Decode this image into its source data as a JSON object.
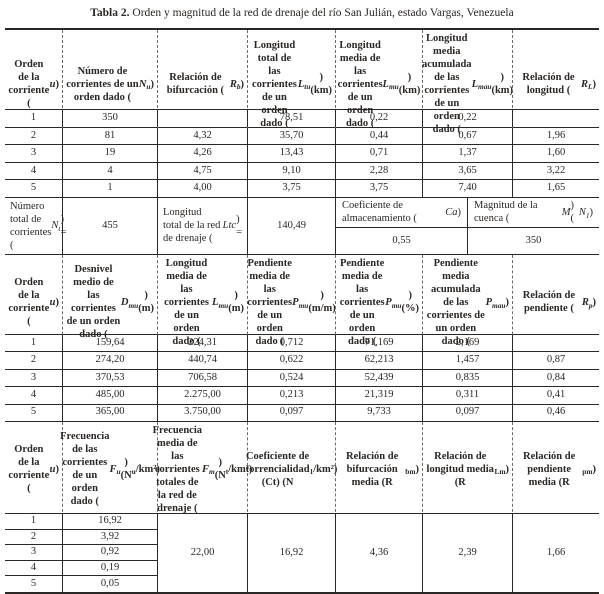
{
  "title": {
    "prefix": "Tabla 2.",
    "rest": " Orden y magnitud de la red de drenaje del río San Julián, estado Vargas, Venezuela"
  },
  "table1": {
    "headers": [
      "Orden de la corriente (<i>u</i>)",
      "Número de corrientes de un orden dado (<i>N<sub>u</sub></i>)",
      "Relación de bifurcación (<i>R<sub>b</sub></i>)",
      "Longitud total de las corrientes de un orden dado (<i>L<sub>tu</sub></i>) (km)",
      "Longitud media de las corrientes de un orden dado (<i>L<sub>mu</sub></i>) (km)",
      "Longitud media acumulada de las corrientes de un orden dado (<i>L<sub>mau</sub></i>) (km)",
      "Relación de longitud (<i>R<sub>L</sub></i>)"
    ],
    "rows": [
      [
        "1",
        "350",
        "",
        "78,51",
        "0,22",
        "0,22",
        ""
      ],
      [
        "2",
        "81",
        "4,32",
        "35,70",
        "0,44",
        "0,67",
        "1,96"
      ],
      [
        "3",
        "19",
        "4,26",
        "13,43",
        "0,71",
        "1,37",
        "1,60"
      ],
      [
        "4",
        "4",
        "4,75",
        "9,10",
        "2,28",
        "3,65",
        "3,22"
      ],
      [
        "5",
        "1",
        "4,00",
        "3,75",
        "3,75",
        "7,40",
        "1,65"
      ]
    ]
  },
  "totals": {
    "nt_label": "Número total de corrientes (<i>N<sub>t</sub></i>) =",
    "nt_value": "455",
    "ltc_label": "Longitud total de la red de drenaje (<i>Ltc</i>) =",
    "ltc_value": "140,49",
    "ca_label": "Coeficiente de almacenamiento (<i>Ca</i>)",
    "ca_value": "0,55",
    "m_label": "Magnitud de la cuenca (<i>M</i>) (<i>N<sub>1</sub></i>)",
    "m_value": "350"
  },
  "table2": {
    "headers": [
      "Orden de la corriente (<i>u</i>)",
      "Desnivel medio de las corrientes de un orden dado (<i>D<sub>mu</sub></i>) (m)",
      "Longitud media de las corrientes de un orden dado (<i>L<sub>mu</sub></i>) (m)",
      "Pendiente media de las corrientes de un orden dado (<i>P<sub>mu</sub></i>) (m/m)",
      "Pendiente media de las corrientes de un orden dado (<i>P<sub>mu</sub></i>) (%)",
      "Pendiente media acumulada de las corrientes de un orden dado (<i>P<sub>mau</sub></i>)",
      "Relación de pendiente (<i>R<sub>p</sub></i>)"
    ],
    "rows": [
      [
        "1",
        "159,64",
        "224,31",
        "0,712",
        "71,169",
        "2,169",
        ""
      ],
      [
        "2",
        "274,20",
        "440,74",
        "0,622",
        "62,213",
        "1,457",
        "0,87"
      ],
      [
        "3",
        "370,53",
        "706,58",
        "0,524",
        "52,439",
        "0,835",
        "0,84"
      ],
      [
        "4",
        "485,00",
        "2.275,00",
        "0,213",
        "21,319",
        "0,311",
        "0,41"
      ],
      [
        "5",
        "365,00",
        "3.750,00",
        "0,097",
        "9,733",
        "0,097",
        "0,46"
      ]
    ]
  },
  "table3": {
    "headers": [
      "Orden de la corriente (<i>u</i>)",
      "Frecuencia de las corrientes de un orden dado (<i>F<sub>u</sub></i>) (N<sub>u</sub>/km²)",
      "Frecuencia media de las corrientes totales de la red de drenaje (<i>F<sub>m</sub></i>) (N<sub>t</sub>/km²)",
      "Coeficiente de torrencialidad (Ct) (N<sub>1</sub>/km²)",
      "Relación de bifurcación media (R<sub>bm</sub>)",
      "Relación de longitud media (R<sub>Lm</sub>)",
      "Relación de pendiente media (R<sub>pm</sub>)"
    ],
    "orders": [
      "1",
      "2",
      "3",
      "4",
      "5"
    ],
    "freq": [
      "16,92",
      "3,92",
      "0,92",
      "0,19",
      "0,05"
    ],
    "merged": [
      "22,00",
      "16,92",
      "4,36",
      "2,39",
      "1,66"
    ]
  },
  "colors": {
    "text": "#2b2724",
    "rule": "#2b2724",
    "background": "#ffffff"
  }
}
